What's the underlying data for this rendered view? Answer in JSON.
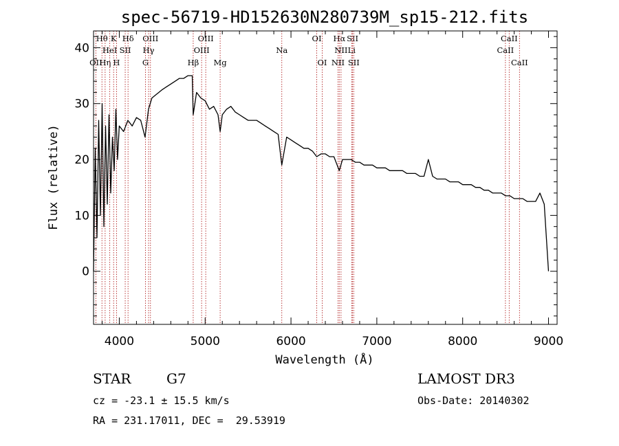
{
  "chart_data": {
    "type": "line",
    "title": "spec-56719-HD152630N280739M_sp15-212.fits",
    "xlabel": "Wavelength (Å)",
    "ylabel": "Flux (relative)",
    "xlim": [
      3700,
      9100
    ],
    "ylim": [
      -9.5,
      43
    ],
    "xticks": [
      4000,
      5000,
      6000,
      7000,
      8000,
      9000
    ],
    "yticks": [
      0,
      10,
      20,
      30,
      40
    ],
    "spectrum": {
      "name": "flux",
      "x": [
        3700,
        3720,
        3740,
        3760,
        3780,
        3800,
        3820,
        3840,
        3860,
        3880,
        3900,
        3920,
        3940,
        3960,
        3980,
        4000,
        4050,
        4100,
        4150,
        4200,
        4250,
        4300,
        4340,
        4380,
        4420,
        4460,
        4500,
        4550,
        4600,
        4650,
        4700,
        4750,
        4800,
        4850,
        4861,
        4900,
        4950,
        5000,
        5050,
        5100,
        5150,
        5175,
        5200,
        5250,
        5300,
        5350,
        5400,
        5450,
        5500,
        5550,
        5600,
        5650,
        5700,
        5750,
        5800,
        5850,
        5893,
        5950,
        6000,
        6050,
        6100,
        6150,
        6200,
        6250,
        6300,
        6350,
        6400,
        6450,
        6500,
        6563,
        6600,
        6650,
        6700,
        6750,
        6800,
        6850,
        6900,
        6950,
        7000,
        7050,
        7100,
        7150,
        7200,
        7250,
        7300,
        7350,
        7400,
        7450,
        7500,
        7550,
        7600,
        7650,
        7700,
        7750,
        7800,
        7850,
        7900,
        7950,
        8000,
        8050,
        8100,
        8150,
        8200,
        8250,
        8300,
        8350,
        8400,
        8450,
        8500,
        8550,
        8600,
        8650,
        8700,
        8750,
        8800,
        8850,
        8900,
        8950,
        9000
      ],
      "y": [
        0,
        22,
        6,
        27,
        10,
        30,
        8,
        26,
        12,
        28,
        14,
        24,
        18,
        29,
        20,
        26,
        25,
        27,
        26,
        27.5,
        27,
        24,
        29,
        31,
        31.5,
        32,
        32.5,
        33,
        33.5,
        34,
        34.5,
        34.5,
        35,
        35,
        28,
        32,
        31,
        30.5,
        29,
        29.5,
        28,
        25,
        28,
        29,
        29.5,
        28.5,
        28,
        27.5,
        27,
        27,
        27,
        26.5,
        26,
        25.5,
        25,
        24.5,
        19,
        24,
        23.5,
        23,
        22.5,
        22,
        22,
        21.5,
        20.5,
        21,
        21,
        20.5,
        20.5,
        18,
        20,
        20,
        20,
        19.5,
        19.5,
        19,
        19,
        19,
        18.5,
        18.5,
        18.5,
        18,
        18,
        18,
        18,
        17.5,
        17.5,
        17.5,
        17,
        17,
        20,
        17,
        16.5,
        16.5,
        16.5,
        16,
        16,
        16,
        15.5,
        15.5,
        15.5,
        15,
        15,
        14.5,
        14.5,
        14,
        14,
        14,
        13.5,
        13.5,
        13,
        13,
        13,
        12.5,
        12.5,
        12.5,
        14,
        12,
        0
      ]
    },
    "line_markers": [
      {
        "label": "OII",
        "wavelength": 3727,
        "row": 2
      },
      {
        "label": "Hθ",
        "wavelength": 3798,
        "row": 0
      },
      {
        "label": "Hη",
        "wavelength": 3835,
        "row": 2
      },
      {
        "label": "HeI",
        "wavelength": 3889,
        "row": 1
      },
      {
        "label": "K",
        "wavelength": 3934,
        "row": 0
      },
      {
        "label": "SII",
        "wavelength": 4069,
        "row": 1
      },
      {
        "label": "H",
        "wavelength": 3968,
        "row": 2
      },
      {
        "label": "Hδ",
        "wavelength": 4102,
        "row": 0
      },
      {
        "label": "OIII",
        "wavelength": 4363,
        "row": 0
      },
      {
        "label": "Hγ",
        "wavelength": 4341,
        "row": 1
      },
      {
        "label": "G",
        "wavelength": 4305,
        "row": 2
      },
      {
        "label": "Hβ",
        "wavelength": 4861,
        "row": 2
      },
      {
        "label": "OIII",
        "wavelength": 5007,
        "row": 0
      },
      {
        "label": "OIII",
        "wavelength": 4959,
        "row": 1
      },
      {
        "label": "Mg",
        "wavelength": 5175,
        "row": 2
      },
      {
        "label": "Na",
        "wavelength": 5893,
        "row": 1
      },
      {
        "label": "OI",
        "wavelength": 6300,
        "row": 0
      },
      {
        "label": "OI",
        "wavelength": 6364,
        "row": 2
      },
      {
        "label": "Hα",
        "wavelength": 6563,
        "row": 0
      },
      {
        "label": "NII",
        "wavelength": 6583,
        "row": 1
      },
      {
        "label": "NII",
        "wavelength": 6548,
        "row": 2
      },
      {
        "label": "SII",
        "wavelength": 6717,
        "row": 0
      },
      {
        "label": "Li",
        "wavelength": 6707,
        "row": 1
      },
      {
        "label": "SII",
        "wavelength": 6731,
        "row": 2
      },
      {
        "label": "CaII",
        "wavelength": 8542,
        "row": 0
      },
      {
        "label": "CaII",
        "wavelength": 8498,
        "row": 1
      },
      {
        "label": "CaII",
        "wavelength": 8662,
        "row": 2
      }
    ]
  },
  "info": {
    "object_class": "STAR",
    "subclass": "G7",
    "survey": "LAMOST DR3",
    "redshift": "cz = -23.1 ± 15.5 km/s",
    "obs_date": "Obs-Date: 20140302",
    "coords": "RA = 231.17011, DEC =  29.53919"
  }
}
